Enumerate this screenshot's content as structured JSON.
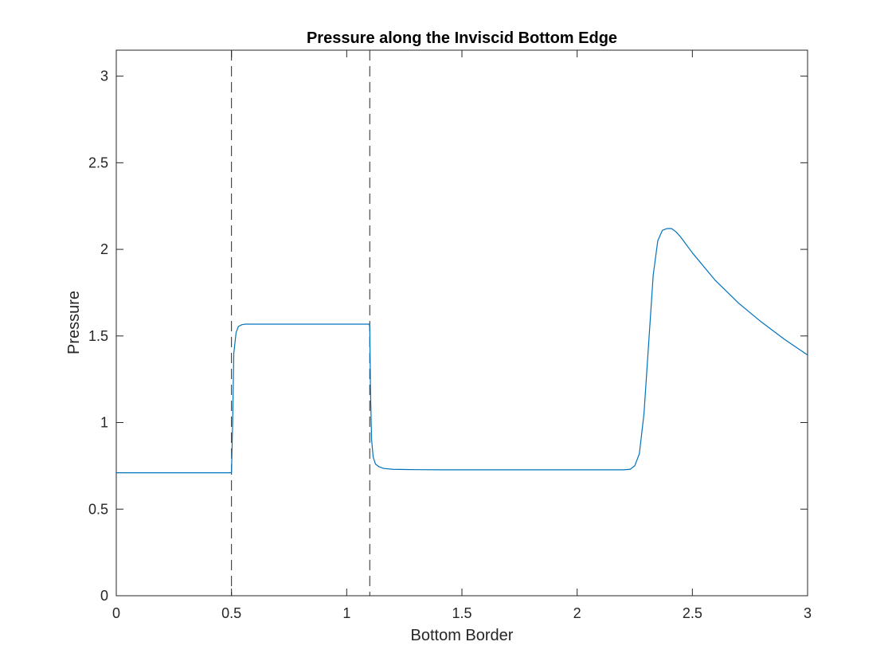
{
  "chart_data": {
    "type": "line",
    "title": "Pressure along the Inviscid Bottom Edge",
    "xlabel": "Bottom Border",
    "ylabel": "Pressure",
    "xlim": [
      0,
      3
    ],
    "ylim": [
      0,
      3.15
    ],
    "xticks": [
      0,
      0.5,
      1,
      1.5,
      2,
      2.5,
      3
    ],
    "xtick_labels": [
      "0",
      "0.5",
      "1",
      "1.5",
      "2",
      "2.5",
      "3"
    ],
    "yticks": [
      0,
      0.5,
      1,
      1.5,
      2,
      2.5,
      3
    ],
    "ytick_labels": [
      "0",
      "0.5",
      "1",
      "1.5",
      "2",
      "2.5",
      "3"
    ],
    "grid": false,
    "legend": "none",
    "colors": {
      "series": "#0072BD",
      "axes": "#262626",
      "reference_lines": "#262626"
    },
    "reference_lines": [
      {
        "orientation": "vertical",
        "x": 0.5,
        "style": "dashed"
      },
      {
        "orientation": "vertical",
        "x": 1.1,
        "style": "dashed"
      }
    ],
    "series": [
      {
        "x": [
          0,
          0.1,
          0.2,
          0.3,
          0.4,
          0.495,
          0.5,
          0.505,
          0.51,
          0.52,
          0.53,
          0.545,
          0.56,
          0.6,
          0.7,
          0.8,
          0.9,
          1.0,
          1.05,
          1.098,
          1.1,
          1.103,
          1.108,
          1.115,
          1.125,
          1.14,
          1.16,
          1.2,
          1.3,
          1.4,
          1.5,
          1.6,
          1.7,
          1.8,
          1.9,
          2.0,
          2.1,
          2.2,
          2.23,
          2.25,
          2.27,
          2.29,
          2.31,
          2.33,
          2.35,
          2.37,
          2.39,
          2.41,
          2.43,
          2.45,
          2.5,
          2.6,
          2.7,
          2.8,
          2.9,
          3.0
        ],
        "y": [
          0.71,
          0.71,
          0.71,
          0.71,
          0.71,
          0.71,
          0.71,
          1.0,
          1.4,
          1.52,
          1.555,
          1.565,
          1.568,
          1.568,
          1.568,
          1.568,
          1.568,
          1.568,
          1.568,
          1.568,
          1.55,
          1.2,
          0.9,
          0.8,
          0.76,
          0.745,
          0.735,
          0.73,
          0.728,
          0.727,
          0.727,
          0.727,
          0.727,
          0.727,
          0.727,
          0.727,
          0.727,
          0.727,
          0.73,
          0.75,
          0.82,
          1.05,
          1.45,
          1.85,
          2.05,
          2.11,
          2.12,
          2.12,
          2.1,
          2.07,
          1.98,
          1.82,
          1.69,
          1.58,
          1.48,
          1.39
        ]
      }
    ]
  }
}
